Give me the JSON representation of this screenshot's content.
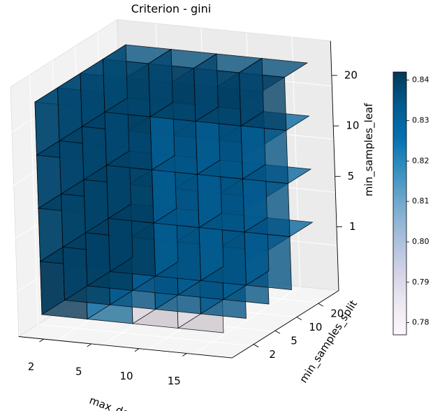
{
  "chart_data": {
    "type": "voxel-3d",
    "title": "Criterion - gini",
    "x_axis": {
      "label": "max_depth",
      "ticks": [
        "2",
        "5",
        "10",
        "15"
      ]
    },
    "y_axis": {
      "label": "min_samples_split",
      "ticks": [
        "2",
        "5",
        "10",
        "20"
      ]
    },
    "z_axis": {
      "label": "min_samples_leaf",
      "ticks": [
        "1",
        "5",
        "10",
        "20"
      ]
    },
    "colorbar": {
      "ticks": [
        "0.84",
        "0.83",
        "0.82",
        "0.81",
        "0.80",
        "0.79",
        "0.78"
      ],
      "range": [
        0.777,
        0.842
      ],
      "colormap": "PuBu"
    },
    "grid": true,
    "values": [
      [
        [
          0.84,
          0.8375,
          0.837,
          0.8365
        ],
        [
          0.838,
          0.8375,
          0.837,
          0.8365
        ],
        [
          0.838,
          0.8375,
          0.837,
          0.8365
        ],
        [
          0.838,
          0.8375,
          0.8365,
          0.836
        ]
      ],
      [
        [
          0.8205,
          0.83,
          0.83,
          0.8385
        ],
        [
          0.83,
          0.83,
          0.83,
          0.838
        ],
        [
          0.83,
          0.83,
          0.83,
          0.8375
        ],
        [
          0.83,
          0.83,
          0.83,
          0.837
        ]
      ],
      [
        [
          0.781,
          0.795,
          0.832,
          0.838
        ],
        [
          0.83,
          0.83,
          0.83,
          0.8375
        ],
        [
          0.83,
          0.83,
          0.83,
          0.837
        ],
        [
          0.83,
          0.83,
          0.83,
          0.837
        ]
      ],
      [
        [
          0.779,
          0.795,
          0.832,
          0.838
        ],
        [
          0.83,
          0.83,
          0.83,
          0.8375
        ],
        [
          0.83,
          0.83,
          0.83,
          0.837
        ],
        [
          0.83,
          0.83,
          0.83,
          0.837
        ]
      ]
    ]
  }
}
